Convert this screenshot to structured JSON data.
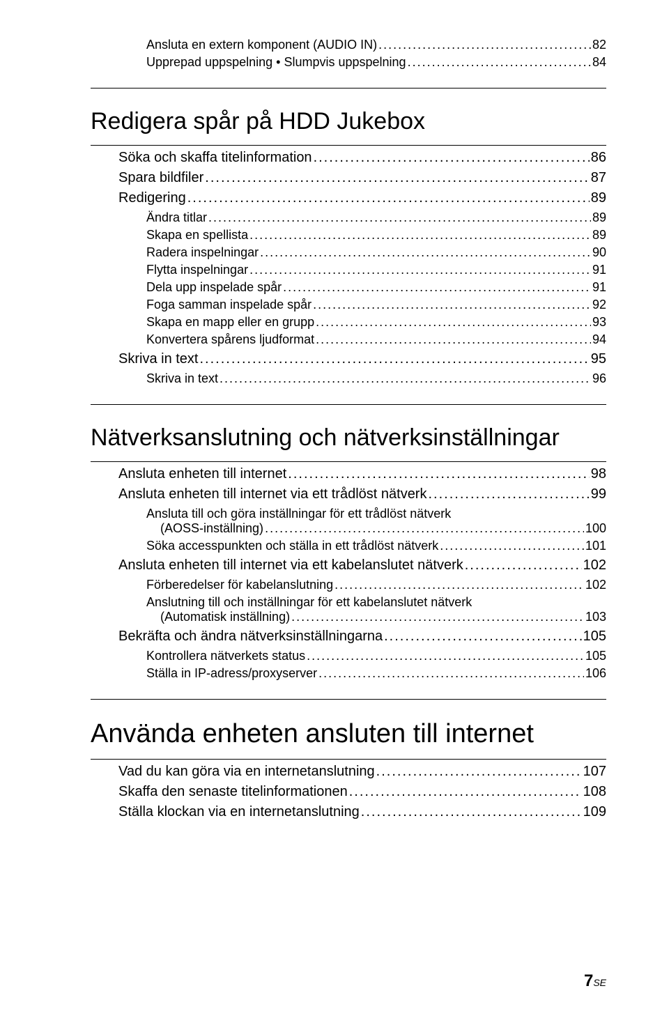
{
  "colors": {
    "text": "#000000",
    "bg": "#ffffff",
    "rule": "#000000"
  },
  "typography": {
    "heading_fontsize": 34,
    "big_heading_fontsize": 38,
    "lvl1_fontsize": 20,
    "lvl2_fontsize": 18,
    "footer_fontsize": 24,
    "footer_suffix_fontsize": 14
  },
  "pre_items": [
    {
      "level": 2,
      "label": "Ansluta en extern komponent (AUDIO IN)",
      "page": "82"
    },
    {
      "level": 2,
      "label": "Upprepad uppspelning • Slumpvis uppspelning",
      "page": "84"
    }
  ],
  "sections": [
    {
      "heading": "Redigera spår på HDD Jukebox",
      "big": false,
      "items": [
        {
          "level": 1,
          "label": "Söka och skaffa titelinformation",
          "page": "86"
        },
        {
          "level": 1,
          "label": "Spara bildfiler",
          "page": "87"
        },
        {
          "level": 1,
          "label": "Redigering",
          "page": "89"
        },
        {
          "level": 2,
          "label": "Ändra titlar",
          "page": "89"
        },
        {
          "level": 2,
          "label": "Skapa en spellista",
          "page": "89"
        },
        {
          "level": 2,
          "label": "Radera inspelningar",
          "page": "90"
        },
        {
          "level": 2,
          "label": "Flytta inspelningar",
          "page": "91"
        },
        {
          "level": 2,
          "label": "Dela upp inspelade spår",
          "page": "91"
        },
        {
          "level": 2,
          "label": "Foga samman inspelade spår",
          "page": "92"
        },
        {
          "level": 2,
          "label": "Skapa en mapp eller en grupp",
          "page": "93"
        },
        {
          "level": 2,
          "label": "Konvertera spårens ljudformat",
          "page": "94"
        },
        {
          "level": 1,
          "label": "Skriva in text",
          "page": "95"
        },
        {
          "level": 2,
          "label": "Skriva in text",
          "page": "96"
        }
      ]
    },
    {
      "heading": "Nätverksanslutning och nätverksinställningar",
      "big": false,
      "items": [
        {
          "level": 1,
          "label": "Ansluta enheten till internet",
          "page": "98"
        },
        {
          "level": 1,
          "label": "Ansluta enheten till internet via ett trådlöst nätverk",
          "page": "99"
        },
        {
          "level": 2,
          "two_line": true,
          "line1": "Ansluta till och göra inställningar för ett trådlöst nätverk",
          "line2": "(AOSS-inställning)",
          "page": "100"
        },
        {
          "level": 2,
          "label": "Söka accesspunkten och ställa in ett trådlöst nätverk",
          "page": "101"
        },
        {
          "level": 1,
          "label": "Ansluta enheten till internet via ett kabelanslutet nätverk",
          "page": " 102"
        },
        {
          "level": 2,
          "label": "Förberedelser för kabelanslutning",
          "page": "102"
        },
        {
          "level": 2,
          "two_line": true,
          "line1": "Anslutning till och inställningar för ett kabelanslutet nätverk",
          "line2": "(Automatisk inställning)",
          "page": "103"
        },
        {
          "level": 1,
          "label": "Bekräfta och ändra nätverksinställningarna",
          "page": " 105"
        },
        {
          "level": 2,
          "label": "Kontrollera nätverkets status",
          "page": "105"
        },
        {
          "level": 2,
          "label": "Ställa in IP-adress/proxyserver",
          "page": "106"
        }
      ]
    },
    {
      "heading": "Använda enheten ansluten till internet",
      "big": true,
      "items": [
        {
          "level": 1,
          "label": "Vad du kan göra via en internetanslutning",
          "page": " 107"
        },
        {
          "level": 1,
          "label": "Skaffa den senaste titelinformationen",
          "page": " 108"
        },
        {
          "level": 1,
          "label": "Ställa klockan via en internetanslutning",
          "page": " 109"
        }
      ]
    }
  ],
  "footer": {
    "page_number": "7",
    "suffix": "SE"
  }
}
